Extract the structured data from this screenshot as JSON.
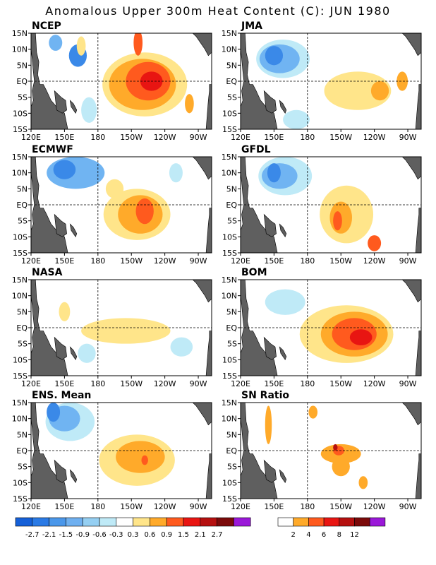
{
  "title": "Anomalous Upper 300m Heat Content (C): JUN 1980",
  "axes": {
    "lat_labels": [
      "15N",
      "10N",
      "5N",
      "EQ",
      "5S",
      "10S",
      "15S"
    ],
    "lon_labels": [
      "120E",
      "150E",
      "180",
      "150W",
      "120W",
      "90W"
    ]
  },
  "panels": [
    {
      "id": "ncep",
      "title": "NCEP",
      "blobs": [
        {
          "lon": 162,
          "lat": 8,
          "rx": 8,
          "ry": 3.5,
          "color": "#3a89e8"
        },
        {
          "lon": 142,
          "lat": 12,
          "rx": 6,
          "ry": 2.5,
          "color": "#70b4f2"
        },
        {
          "lon": 172,
          "lat": -9,
          "rx": 7,
          "ry": 4,
          "color": "#bfeaf7"
        },
        {
          "lon": 165,
          "lat": 11,
          "rx": 4,
          "ry": 3,
          "color": "#ffe58a"
        },
        {
          "lon": 222,
          "lat": -1,
          "rx": 38,
          "ry": 10,
          "color": "#ffe58a"
        },
        {
          "lon": 220,
          "lat": -1,
          "rx": 30,
          "ry": 8,
          "color": "#ffaa2a"
        },
        {
          "lon": 225,
          "lat": 0,
          "rx": 20,
          "ry": 6,
          "color": "#ff5a1e"
        },
        {
          "lon": 228,
          "lat": 0,
          "rx": 10,
          "ry": 3,
          "color": "#e81512"
        },
        {
          "lon": 216,
          "lat": 12,
          "rx": 4,
          "ry": 4,
          "color": "#ff5a1e"
        },
        {
          "lon": 262,
          "lat": -7,
          "rx": 4,
          "ry": 3,
          "color": "#ffaa2a"
        }
      ]
    },
    {
      "id": "jma",
      "title": "JMA",
      "blobs": [
        {
          "lon": 158,
          "lat": 7,
          "rx": 24,
          "ry": 6,
          "color": "#bfeaf7"
        },
        {
          "lon": 155,
          "lat": 7,
          "rx": 18,
          "ry": 4.5,
          "color": "#70b4f2"
        },
        {
          "lon": 150,
          "lat": 8,
          "rx": 8,
          "ry": 3,
          "color": "#3a89e8"
        },
        {
          "lon": 170,
          "lat": -12,
          "rx": 12,
          "ry": 3,
          "color": "#bfeaf7"
        },
        {
          "lon": 225,
          "lat": -3,
          "rx": 30,
          "ry": 6,
          "color": "#ffe58a"
        },
        {
          "lon": 245,
          "lat": -3,
          "rx": 8,
          "ry": 3,
          "color": "#ffaa2a"
        },
        {
          "lon": 265,
          "lat": 0,
          "rx": 5,
          "ry": 3,
          "color": "#ffaa2a"
        }
      ]
    },
    {
      "id": "ecmwf",
      "title": "ECMWF",
      "blobs": [
        {
          "lon": 160,
          "lat": 10,
          "rx": 26,
          "ry": 5,
          "color": "#70b4f2"
        },
        {
          "lon": 150,
          "lat": 11,
          "rx": 10,
          "ry": 3,
          "color": "#3a89e8"
        },
        {
          "lon": 215,
          "lat": -3,
          "rx": 30,
          "ry": 8,
          "color": "#ffe58a"
        },
        {
          "lon": 218,
          "lat": -3,
          "rx": 20,
          "ry": 6,
          "color": "#ffaa2a"
        },
        {
          "lon": 222,
          "lat": -2,
          "rx": 8,
          "ry": 4,
          "color": "#ff5a1e"
        },
        {
          "lon": 195,
          "lat": 5,
          "rx": 8,
          "ry": 3,
          "color": "#ffe58a"
        },
        {
          "lon": 250,
          "lat": 10,
          "rx": 6,
          "ry": 3,
          "color": "#bfeaf7"
        }
      ]
    },
    {
      "id": "gfdl",
      "title": "GFDL",
      "blobs": [
        {
          "lon": 160,
          "lat": 9,
          "rx": 24,
          "ry": 6,
          "color": "#bfeaf7"
        },
        {
          "lon": 155,
          "lat": 9,
          "rx": 16,
          "ry": 4,
          "color": "#70b4f2"
        },
        {
          "lon": 150,
          "lat": 10,
          "rx": 6,
          "ry": 3,
          "color": "#3a89e8"
        },
        {
          "lon": 215,
          "lat": -3,
          "rx": 24,
          "ry": 9,
          "color": "#ffe58a"
        },
        {
          "lon": 210,
          "lat": -4,
          "rx": 10,
          "ry": 5,
          "color": "#ffaa2a"
        },
        {
          "lon": 207,
          "lat": -5,
          "rx": 4,
          "ry": 3,
          "color": "#ff5a1e"
        },
        {
          "lon": 240,
          "lat": -12,
          "rx": 6,
          "ry": 2.5,
          "color": "#ff5a1e"
        }
      ]
    },
    {
      "id": "nasa",
      "title": "NASA",
      "blobs": [
        {
          "lon": 205,
          "lat": -1,
          "rx": 40,
          "ry": 4,
          "color": "#ffe58a"
        },
        {
          "lon": 170,
          "lat": -8,
          "rx": 8,
          "ry": 3,
          "color": "#bfeaf7"
        },
        {
          "lon": 255,
          "lat": -6,
          "rx": 10,
          "ry": 3,
          "color": "#bfeaf7"
        },
        {
          "lon": 150,
          "lat": 5,
          "rx": 5,
          "ry": 3,
          "color": "#ffe58a"
        }
      ]
    },
    {
      "id": "bom",
      "title": "BOM",
      "blobs": [
        {
          "lon": 160,
          "lat": 8,
          "rx": 18,
          "ry": 4,
          "color": "#bfeaf7"
        },
        {
          "lon": 215,
          "lat": -2,
          "rx": 42,
          "ry": 9,
          "color": "#ffe58a"
        },
        {
          "lon": 222,
          "lat": -2,
          "rx": 30,
          "ry": 7,
          "color": "#ffaa2a"
        },
        {
          "lon": 222,
          "lat": -2,
          "rx": 20,
          "ry": 5,
          "color": "#ff5a1e"
        },
        {
          "lon": 228,
          "lat": -3,
          "rx": 10,
          "ry": 2.5,
          "color": "#e81512"
        }
      ]
    },
    {
      "id": "ens-mean",
      "title": "ENS. Mean",
      "blobs": [
        {
          "lon": 155,
          "lat": 9,
          "rx": 22,
          "ry": 6,
          "color": "#bfeaf7"
        },
        {
          "lon": 150,
          "lat": 10,
          "rx": 14,
          "ry": 4,
          "color": "#70b4f2"
        },
        {
          "lon": 140,
          "lat": 12,
          "rx": 6,
          "ry": 3,
          "color": "#3a89e8"
        },
        {
          "lon": 215,
          "lat": -3,
          "rx": 34,
          "ry": 8,
          "color": "#ffe58a"
        },
        {
          "lon": 218,
          "lat": -2,
          "rx": 22,
          "ry": 5,
          "color": "#ffaa2a"
        },
        {
          "lon": 222,
          "lat": -3,
          "rx": 3,
          "ry": 1.5,
          "color": "#ff5a1e"
        }
      ]
    },
    {
      "id": "sn-ratio",
      "title": "SN Ratio",
      "blobs": [
        {
          "lon": 210,
          "lat": -1,
          "rx": 18,
          "ry": 3,
          "color": "#ffaa2a"
        },
        {
          "lon": 210,
          "lat": -5,
          "rx": 8,
          "ry": 3,
          "color": "#ffaa2a"
        },
        {
          "lon": 208,
          "lat": 0,
          "rx": 5,
          "ry": 1.5,
          "color": "#ff5a1e"
        },
        {
          "lon": 205,
          "lat": 1,
          "rx": 2,
          "ry": 1,
          "color": "#b5100f"
        },
        {
          "lon": 145,
          "lat": 8,
          "rx": 3,
          "ry": 6,
          "color": "#ffaa2a"
        },
        {
          "lon": 185,
          "lat": 12,
          "rx": 4,
          "ry": 2,
          "color": "#ffaa2a"
        },
        {
          "lon": 230,
          "lat": -10,
          "rx": 4,
          "ry": 2,
          "color": "#ffaa2a"
        }
      ]
    }
  ],
  "colorbar_left": {
    "labels": [
      "-2.7",
      "-2.1",
      "-1.5",
      "-0.9",
      "-0.6",
      "-0.3",
      "0.3",
      "0.6",
      "0.9",
      "1.5",
      "2.1",
      "2.7"
    ],
    "colors": [
      "#1560d8",
      "#2a7ae5",
      "#4a97ea",
      "#6fb0f0",
      "#95cff2",
      "#bfeaf7",
      "#ffffff",
      "#ffe58a",
      "#ffaa2a",
      "#ff5a1e",
      "#e81512",
      "#b5100f",
      "#7b0a0a",
      "#9a18d8"
    ]
  },
  "colorbar_right": {
    "labels": [
      "2",
      "4",
      "6",
      "8",
      "12"
    ],
    "colors": [
      "#ffffff",
      "#ffaa2a",
      "#ff5a1e",
      "#e81512",
      "#b5100f",
      "#7b0a0a",
      "#9a18d8"
    ]
  },
  "land_color": "#5f5f5f"
}
